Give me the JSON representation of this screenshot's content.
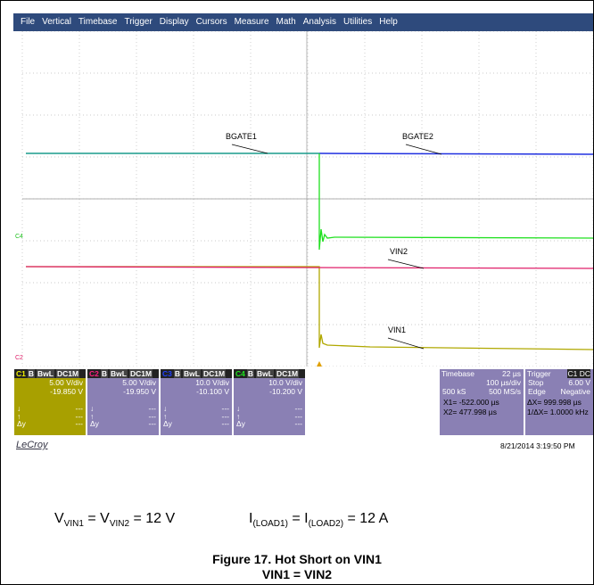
{
  "menu": [
    "File",
    "Vertical",
    "Timebase",
    "Trigger",
    "Display",
    "Cursors",
    "Measure",
    "Math",
    "Analysis",
    "Utilities",
    "Help"
  ],
  "trace_labels": [
    "BGATE1",
    "BGATE2",
    "VIN2",
    "VIN1"
  ],
  "side_markers": [
    "C4",
    "C2"
  ],
  "channels": [
    {
      "name": "C1",
      "flags": [
        "B",
        "BwL",
        "DC1M"
      ],
      "scale": "5.00 V/div",
      "offset": "-19.850 V",
      "color": "#f0f000",
      "bg": "#a8a000",
      "stats": [
        [
          "↓",
          "---"
        ],
        [
          "↑",
          "---"
        ],
        [
          "Δy",
          "---"
        ]
      ]
    },
    {
      "name": "C2",
      "flags": [
        "B",
        "BwL",
        "DC1M"
      ],
      "scale": "5.00 V/div",
      "offset": "-19.950 V",
      "color": "#ff2080",
      "bg": "#8a80b4",
      "stats": [
        [
          "↓",
          "---"
        ],
        [
          "↑",
          "---"
        ],
        [
          "Δy",
          "---"
        ]
      ]
    },
    {
      "name": "C3",
      "flags": [
        "B",
        "BwL",
        "DC1M"
      ],
      "scale": "10.0 V/div",
      "offset": "-10.100 V",
      "color": "#2040ff",
      "bg": "#8a80b4",
      "stats": [
        [
          "↓",
          "---"
        ],
        [
          "↑",
          "---"
        ],
        [
          "Δy",
          "---"
        ]
      ]
    },
    {
      "name": "C4",
      "flags": [
        "B",
        "BwL",
        "DC1M"
      ],
      "scale": "10.0 V/div",
      "offset": "-10.200 V",
      "color": "#20e020",
      "bg": "#8a80b4",
      "stats": [
        [
          "↓",
          "---"
        ],
        [
          "↑",
          "---"
        ],
        [
          "Δy",
          "---"
        ]
      ]
    }
  ],
  "timebase": {
    "title": "Timebase",
    "delay": "22 µs",
    "scale": "100 µs/div",
    "samples": "500 kS",
    "rate": "500 MS/s"
  },
  "trigger": {
    "title": "Trigger",
    "source": "C1 DC",
    "mode": "Stop",
    "level": "6.00 V",
    "type": "Edge",
    "slope": "Negative"
  },
  "cursors": {
    "x1": "X1= -522.000 µs",
    "dx": "ΔX= 999.998 µs",
    "x2": "X2= 477.998 µs",
    "inv": "1/ΔX= 1.0000 kHz"
  },
  "brand": "LeCroy",
  "timestamp": "8/21/2014 3:19:50 PM",
  "equations": {
    "left": {
      "a": "V",
      "a_sub": "VIN1",
      "b": " = V",
      "b_sub": "VIN2",
      "c": " = 12 V"
    },
    "right": {
      "a": "I",
      "a_sub": "(LOAD1)",
      "b": " = I",
      "b_sub": "(LOAD2)",
      "c": " = 12 A"
    }
  },
  "caption": [
    "Figure 17. Hot Short on VIN1",
    "VIN1 = VIN2"
  ]
}
